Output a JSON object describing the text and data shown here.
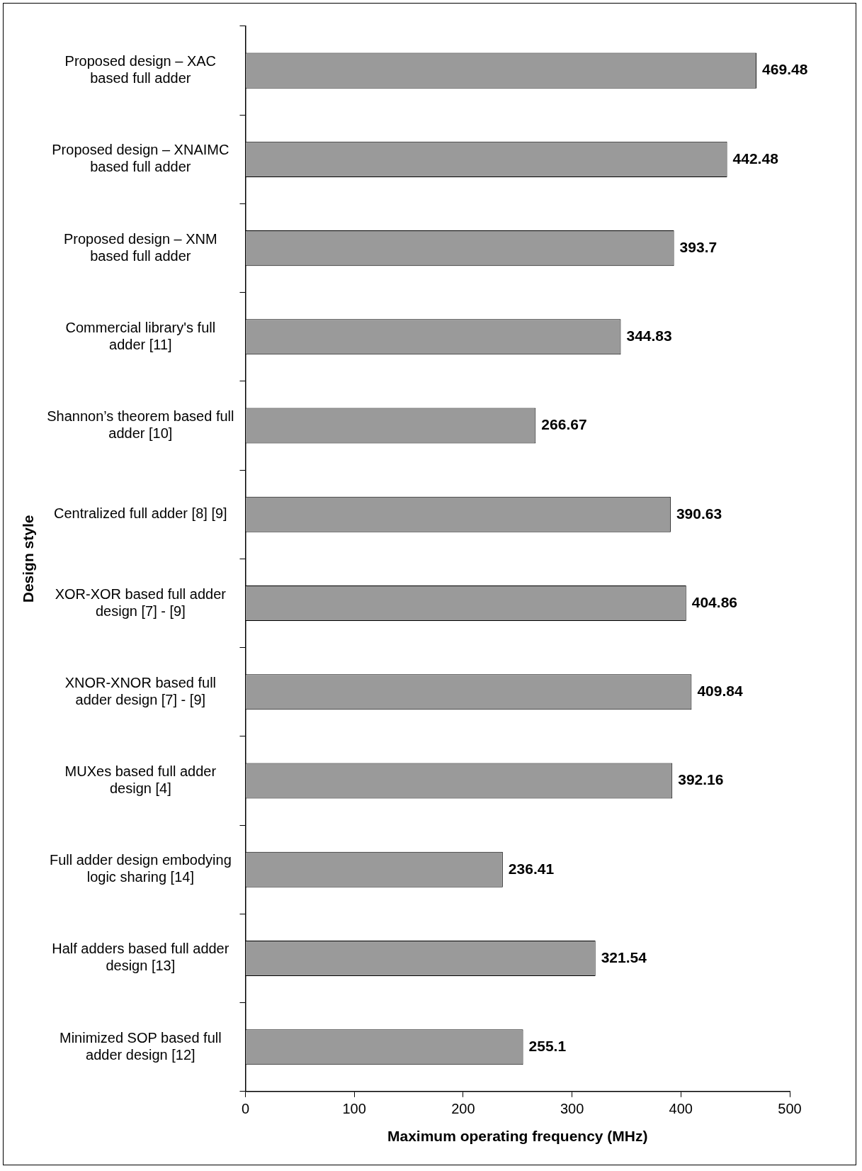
{
  "chart_data": {
    "type": "bar",
    "orientation": "horizontal",
    "xlabel": "Maximum operating frequency (MHz)",
    "ylabel": "Design style",
    "categories": [
      "Proposed design – XAC based full adder",
      "Proposed design – XNAIMC based full adder",
      "Proposed design – XNM based full adder",
      "Commercial library's full adder [11]",
      "Shannon’s theorem based full adder [10]",
      "Centralized full adder [8] [9]",
      "XOR-XOR based full adder design [7] - [9]",
      "XNOR-XNOR based full adder design [7] - [9]",
      "MUXes based full adder design [4]",
      "Full adder design embodying logic sharing [14]",
      "Half adders based full adder design [13]",
      "Minimized SOP based full adder design [12]"
    ],
    "values": [
      469.48,
      442.48,
      393.7,
      344.83,
      266.67,
      390.63,
      404.86,
      409.84,
      392.16,
      236.41,
      321.54,
      255.1
    ],
    "color": "#9a9a9a",
    "xlim": [
      0,
      500
    ],
    "xticks": [
      0,
      100,
      200,
      300,
      400,
      500
    ],
    "grid": false,
    "legend": false,
    "data_labels": true
  }
}
